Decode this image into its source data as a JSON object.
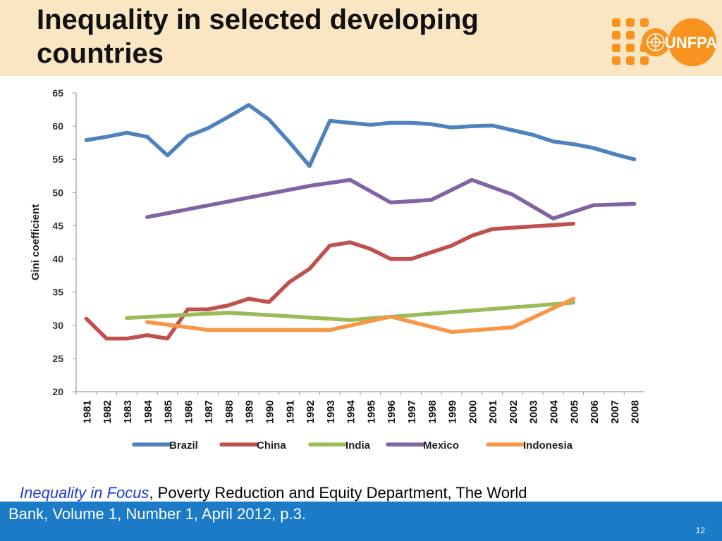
{
  "header": {
    "title": "Inequality in selected developing countries",
    "logo_text": "UNFPA",
    "logo_color": "#f7931e"
  },
  "chart_data": {
    "type": "line",
    "title": "",
    "xlabel": "",
    "ylabel": "Gini coefficient",
    "ylim": [
      20,
      65
    ],
    "yticks": [
      20,
      25,
      30,
      35,
      40,
      45,
      50,
      55,
      60,
      65
    ],
    "categories": [
      "1981",
      "1982",
      "1983",
      "1984",
      "1985",
      "1986",
      "1987",
      "1988",
      "1989",
      "1990",
      "1991",
      "1992",
      "1993",
      "1994",
      "1995",
      "1996",
      "1997",
      "1998",
      "1999",
      "2000",
      "2001",
      "2002",
      "2003",
      "2004",
      "2005",
      "2006",
      "2007",
      "2008"
    ],
    "grid": false,
    "legend_position": "bottom",
    "series": [
      {
        "name": "Brazil",
        "color": "#4f81bd",
        "values": [
          57.9,
          58.4,
          59.0,
          58.4,
          55.6,
          58.5,
          59.7,
          61.4,
          63.2,
          61.0,
          57.6,
          54.0,
          60.8,
          60.5,
          60.2,
          60.5,
          60.5,
          60.3,
          59.8,
          60.0,
          60.1,
          59.4,
          58.7,
          57.7,
          57.3,
          56.7,
          55.8,
          55.0
        ]
      },
      {
        "name": "China",
        "color": "#c0504d",
        "values": [
          31.0,
          28.0,
          28.0,
          28.5,
          28.0,
          32.4,
          32.4,
          33.0,
          34.0,
          33.5,
          36.5,
          38.5,
          42.0,
          42.5,
          41.5,
          40.0,
          40.0,
          41.0,
          42.0,
          43.5,
          44.5,
          44.7,
          44.9,
          45.1,
          45.3,
          null,
          null,
          null
        ]
      },
      {
        "name": "India",
        "color": "#9bbb59",
        "values": [
          null,
          null,
          31.1,
          null,
          null,
          null,
          null,
          31.9,
          null,
          null,
          null,
          null,
          null,
          30.8,
          null,
          null,
          null,
          null,
          null,
          null,
          null,
          null,
          null,
          null,
          33.4,
          null,
          null,
          null
        ]
      },
      {
        "name": "Mexico",
        "color": "#8064a2",
        "values": [
          null,
          null,
          null,
          46.3,
          null,
          null,
          null,
          null,
          null,
          null,
          null,
          51.0,
          null,
          51.9,
          null,
          48.5,
          null,
          48.9,
          null,
          51.9,
          null,
          49.7,
          null,
          46.1,
          null,
          48.1,
          null,
          48.3
        ]
      },
      {
        "name": "Indonesia",
        "color": "#f79646",
        "values": [
          null,
          null,
          null,
          30.5,
          null,
          null,
          29.3,
          null,
          null,
          null,
          null,
          null,
          29.3,
          null,
          null,
          31.3,
          null,
          null,
          29.0,
          null,
          null,
          29.7,
          null,
          null,
          34.0,
          null,
          null,
          null
        ]
      }
    ]
  },
  "citation": {
    "source": "Inequality in Focus",
    "rest_line1": ", Poverty Reduction and Equity Department, The World",
    "line2": "Bank, Volume 1, Number 1, April 2012, p.3."
  },
  "footer": {
    "page_number": "12",
    "bar_color": "#1c7bc6"
  }
}
